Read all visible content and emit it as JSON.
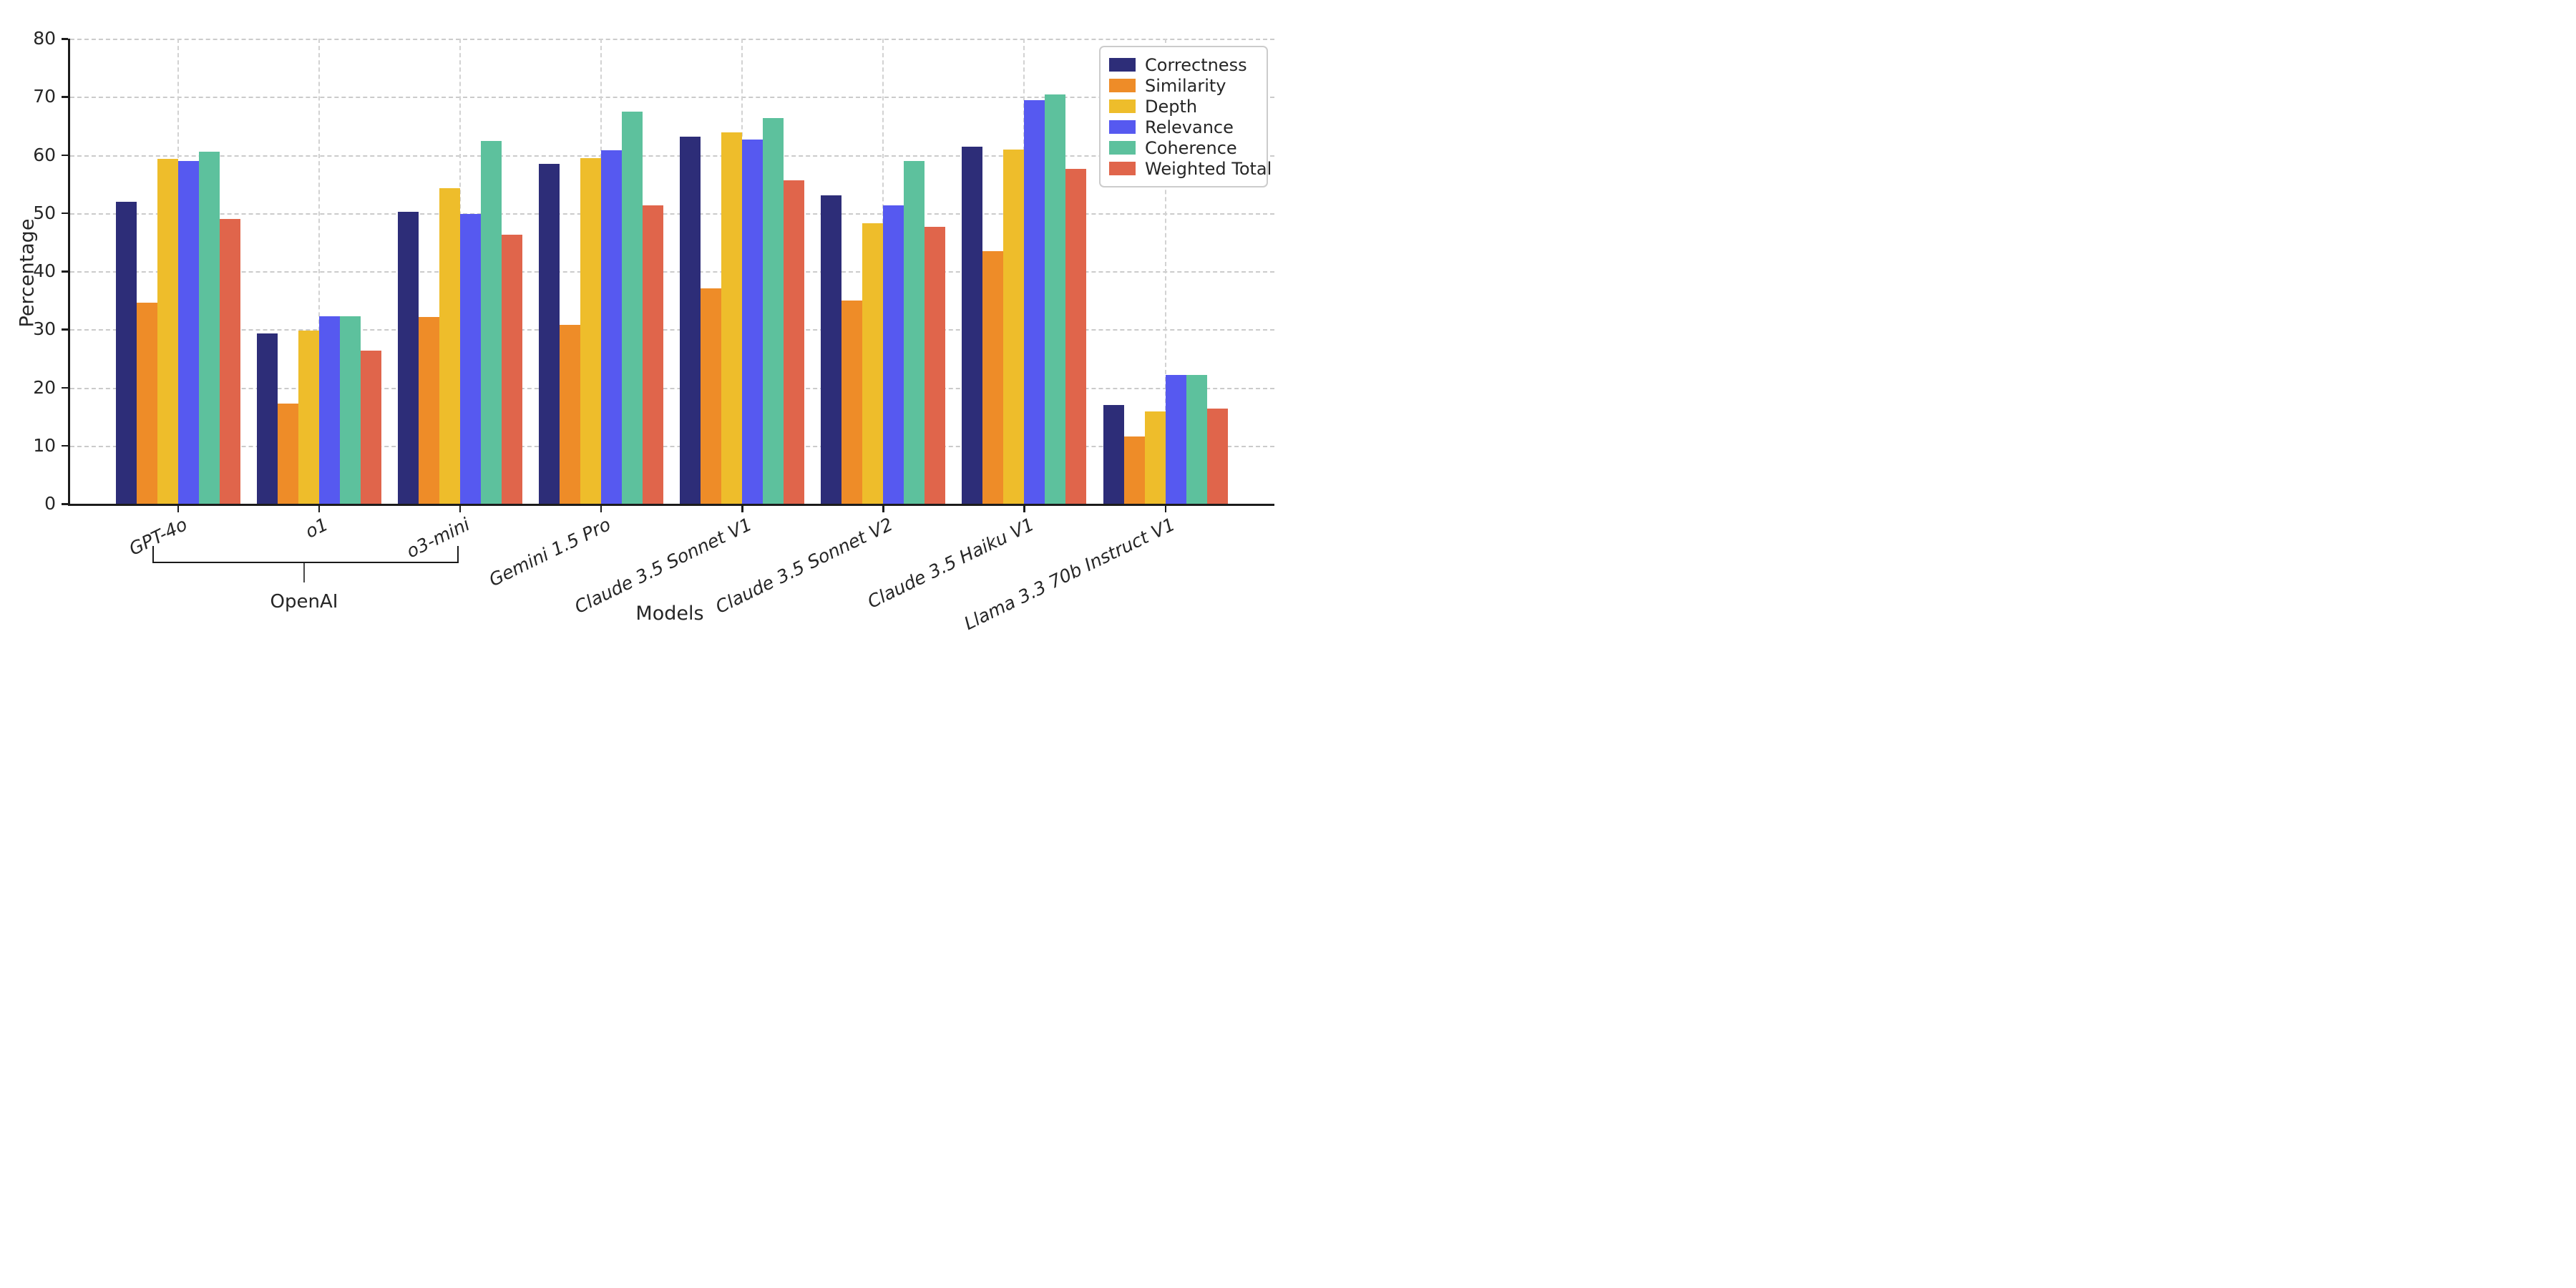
{
  "chart_data": {
    "type": "bar",
    "title": "",
    "xlabel": "Models",
    "ylabel": "Percentage",
    "ylim": [
      0,
      80
    ],
    "ytick_step": 10,
    "yticks": [
      0,
      10,
      20,
      30,
      40,
      50,
      60,
      70,
      80
    ],
    "grid": "dashed horizontal lines every 10 plus dashed vertical line at each category center",
    "legend_position": "upper right",
    "categories": [
      "GPT-4o",
      "o1",
      "o3-mini",
      "Gemini 1.5 Pro",
      "Claude 3.5 Sonnet V1",
      "Claude 3.5 Sonnet V2",
      "Claude 3.5 Haiku V1",
      "Llama 3.3 70b Instruct V1"
    ],
    "series": [
      {
        "name": "Correctness",
        "color": "#2d2d78",
        "values": [
          51.9,
          29.3,
          50.2,
          58.5,
          63.1,
          53.0,
          61.4,
          17.0
        ]
      },
      {
        "name": "Similarity",
        "color": "#ee8c28",
        "values": [
          34.6,
          17.2,
          32.1,
          30.8,
          37.0,
          35.0,
          43.4,
          11.6
        ]
      },
      {
        "name": "Depth",
        "color": "#eebd2b",
        "values": [
          59.3,
          29.8,
          54.3,
          59.4,
          63.9,
          48.3,
          60.9,
          15.9
        ]
      },
      {
        "name": "Relevance",
        "color": "#5659f0",
        "values": [
          58.9,
          32.3,
          49.8,
          60.8,
          62.6,
          51.3,
          69.4,
          22.2
        ]
      },
      {
        "name": "Coherence",
        "color": "#5dc19d",
        "values": [
          60.5,
          32.3,
          62.4,
          67.5,
          66.4,
          59.0,
          70.4,
          22.2
        ]
      },
      {
        "name": "Weighted Total",
        "color": "#e0654b",
        "values": [
          49.0,
          26.3,
          46.3,
          51.3,
          55.6,
          47.6,
          57.6,
          16.4
        ]
      }
    ],
    "annotations": [
      {
        "label": "OpenAI",
        "type": "bracket",
        "spans_categories": [
          "GPT-4o",
          "o1",
          "o3-mini"
        ]
      }
    ],
    "colors": {
      "spine": "#1c1c1c",
      "gridline": "#cbcbcb",
      "text": "#262626",
      "background": "#ffffff"
    }
  }
}
